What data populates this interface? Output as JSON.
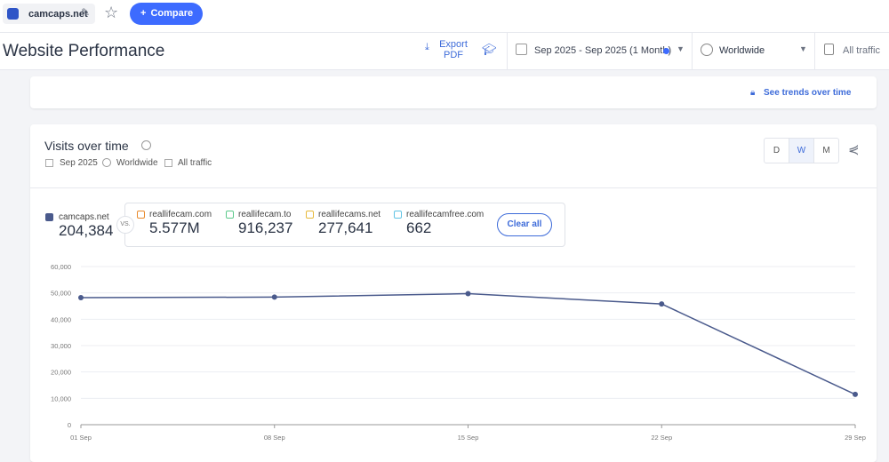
{
  "top_bar": {
    "site": "camcaps.net",
    "compare": "Compare"
  },
  "header": {
    "title": "Website Performance",
    "export": "Export PDF",
    "date_range": "Sep 2025 - Sep 2025 (1 Month)",
    "region": "Worldwide",
    "traffic": "All traffic"
  },
  "trends_link": "See trends over time",
  "card": {
    "title": "Visits over time",
    "date": "Sep 2025",
    "region": "Worldwide",
    "traffic": "All traffic",
    "granularity": [
      "D",
      "W",
      "M"
    ],
    "main": {
      "name": "camcaps.net",
      "value": "204,384"
    },
    "vs": "VS.",
    "competitors": [
      {
        "name": "reallifecam.com",
        "value": "5.577M",
        "color": "#e8892b"
      },
      {
        "name": "reallifecam.to",
        "value": "916,237",
        "color": "#5bc98a"
      },
      {
        "name": "reallifecams.net",
        "value": "277,641",
        "color": "#e7b93a"
      },
      {
        "name": "reallifecamfree.com",
        "value": "662",
        "color": "#5fc3e4"
      }
    ],
    "clear": "Clear all"
  },
  "chart_data": {
    "type": "line",
    "categories": [
      "01 Sep",
      "08 Sep",
      "15 Sep",
      "22 Sep",
      "29 Sep"
    ],
    "values": [
      48200,
      48400,
      49700,
      45800,
      11500
    ],
    "color": "#4a5a8c",
    "ylim": [
      0,
      60000
    ],
    "yticks": [
      0,
      {
        "value": 10000,
        "label": "10,000"
      },
      {
        "value": 20000,
        "label": "20,000"
      },
      {
        "value": 30000,
        "label": "30,000"
      },
      {
        "value": 40000,
        "label": "40,000"
      },
      {
        "value": 50000,
        "label": "50,000"
      },
      {
        "value": 60000,
        "label": "60,000"
      }
    ],
    "grid": true
  }
}
